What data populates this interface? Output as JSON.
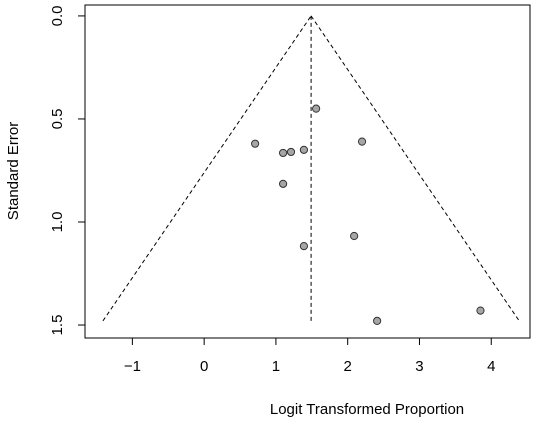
{
  "chart_data": {
    "type": "scatter",
    "x_label": "Logit Transformed Proportion",
    "y_label": "Standard Error",
    "xlim": [
      -1.66,
      4.54
    ],
    "ylim": [
      1.563,
      -0.053
    ],
    "xticks": [
      {
        "value": -1,
        "label": "−1"
      },
      0,
      1,
      2,
      3,
      4
    ],
    "yticks": [
      {
        "value": 0,
        "label": "0.0"
      },
      0.5,
      {
        "value": 1,
        "label": "1.0"
      },
      1.5
    ],
    "series": [
      {
        "color": "#a6a6a6",
        "x": [
          1.56,
          0.71,
          1.1,
          1.21,
          1.39,
          2.2,
          1.1,
          1.39,
          2.09,
          2.41,
          3.85
        ],
        "values": [
          0.45,
          0.62,
          0.665,
          0.66,
          0.65,
          0.61,
          0.815,
          1.117,
          1.068,
          1.48,
          1.43
        ]
      }
    ],
    "lines": [
      {
        "x": [
          1.49,
          1.49
        ],
        "y": [
          0,
          1.48
        ]
      },
      {
        "x": [
          -1.41,
          1.49
        ],
        "y": [
          1.48,
          0
        ]
      },
      {
        "x": [
          1.49,
          4.39
        ],
        "y": [
          0,
          1.48
        ]
      }
    ]
  }
}
